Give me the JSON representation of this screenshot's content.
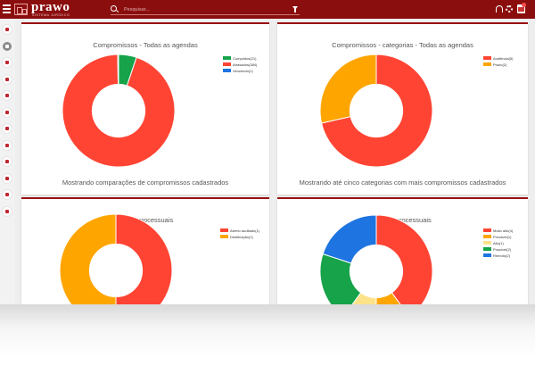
{
  "app": {
    "logo_text": "prawo",
    "logo_subtitle": "SISTEMA JURÍDICO"
  },
  "search": {
    "placeholder": "Pesquisar..."
  },
  "sidebar": {
    "items": [
      "home-icon",
      "shortcut-icon",
      "calendar-icon",
      "finance-icon",
      "folder-icon",
      "briefcase-icon",
      "tag-icon",
      "document-icon",
      "scale-icon",
      "report-icon",
      "mail-icon",
      "chart-icon"
    ]
  },
  "chart_data": [
    {
      "type": "pie",
      "title": "Compromissos - Todas as agendas",
      "caption": "Mostrando comparações de compromissos cadastrados",
      "legend_position": "top-right",
      "series": [
        {
          "name": "Cumpridos(21)",
          "value": 21,
          "color": "#16a34a"
        },
        {
          "name": "Atrasados(384)",
          "value": 384,
          "color": "#ff4433"
        },
        {
          "name": "Vencendo(1)",
          "value": 1,
          "color": "#1e74e0"
        }
      ]
    },
    {
      "type": "pie",
      "title": "Compromissos - categorias - Todas as agendas",
      "caption": "Mostrando até cinco categorias com mais compromissos cadastrados",
      "legend_position": "top-right",
      "series": [
        {
          "name": "Audiência(5)",
          "value": 5,
          "color": "#ff4433"
        },
        {
          "name": "Prazo(2)",
          "value": 2,
          "color": "#ffa500"
        }
      ]
    },
    {
      "type": "pie",
      "title": "Fases processuais",
      "legend_position": "top-right",
      "series": [
        {
          "name": "Aberto auditado(1)",
          "value": 1,
          "color": "#ff4433"
        },
        {
          "name": "Distribuição(1)",
          "value": 1,
          "color": "#ffa500"
        }
      ]
    },
    {
      "type": "pie",
      "title": "Riscos processuais",
      "legend_position": "top-right",
      "series": [
        {
          "name": "Muito alto(4)",
          "value": 4,
          "color": "#ff4433"
        },
        {
          "name": "Provável(1)",
          "value": 1,
          "color": "#ffa500"
        },
        {
          "name": "Alto(1)",
          "value": 1,
          "color": "#fce38a"
        },
        {
          "name": "Possível(2)",
          "value": 2,
          "color": "#16a34a"
        },
        {
          "name": "Remoto(2)",
          "value": 2,
          "color": "#1e74e0"
        }
      ]
    }
  ]
}
